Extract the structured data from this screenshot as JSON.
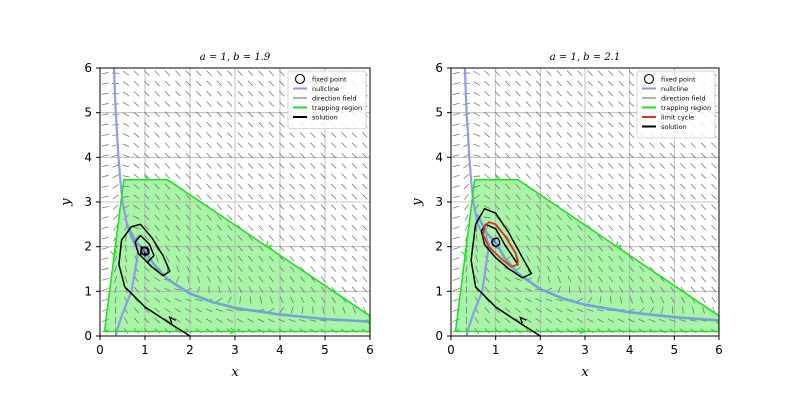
{
  "colors": {
    "trapping_fill": "#a8f5a8",
    "trapping_edge": "#22e022",
    "nullcline": "#8e96ec",
    "nullcline_overlap": "#6f9fd8",
    "direction_field": "#6a6a6a",
    "limit_cycle": "#e0301e",
    "solution": "#000000",
    "fixed_point": "#000000",
    "grid": "#b0b0b0",
    "inner_spiral": "#5b4bb8"
  },
  "chart_data": [
    {
      "type": "line",
      "title": "a = 1, b = 1.9",
      "params": {
        "a": 1,
        "b": 1.9
      },
      "xlabel": "x",
      "ylabel": "y",
      "xlim": [
        0,
        6
      ],
      "ylim": [
        0,
        6
      ],
      "xticks": [
        "0",
        "1",
        "2",
        "3",
        "4",
        "5",
        "6"
      ],
      "yticks": [
        "0",
        "1",
        "2",
        "3",
        "4",
        "5",
        "6"
      ],
      "grid": true,
      "legend_position": "top-right",
      "legend": [
        "fixed point",
        "nullcline",
        "direction field",
        "trapping region",
        "solution"
      ],
      "fixed_point": {
        "x": 1,
        "y": 1.9
      },
      "trapping_region": [
        [
          0.1,
          0.1
        ],
        [
          0.53,
          3.5
        ],
        [
          1.5,
          3.5
        ],
        [
          6,
          0.45
        ],
        [
          6,
          0.1
        ]
      ],
      "nullcline_steep": [
        [
          0.312,
          6
        ],
        [
          0.33,
          5.5
        ],
        [
          0.35,
          5
        ],
        [
          0.38,
          4.5
        ],
        [
          0.41,
          4
        ],
        [
          0.45,
          3.5
        ],
        [
          0.5,
          3
        ],
        [
          0.6,
          2.5
        ],
        [
          0.7,
          2.2
        ],
        [
          0.8,
          2.0
        ],
        [
          0.85,
          1.9
        ],
        [
          0.7,
          1.0
        ],
        [
          0.5,
          0.5
        ],
        [
          0.4,
          0.2
        ],
        [
          0.35,
          0
        ]
      ],
      "nullcline_hyperbola": [
        [
          0.6,
          2.5
        ],
        [
          0.8,
          2.1
        ],
        [
          1.0,
          1.9
        ],
        [
          1.2,
          1.6
        ],
        [
          1.5,
          1.27
        ],
        [
          2,
          0.95
        ],
        [
          2.5,
          0.76
        ],
        [
          3,
          0.63
        ],
        [
          4,
          0.48
        ],
        [
          5,
          0.38
        ],
        [
          6,
          0.32
        ]
      ],
      "solution_outer": [
        [
          2.0,
          0
        ],
        [
          1.6,
          0.25
        ],
        [
          1.0,
          0.65
        ],
        [
          0.55,
          1.1
        ],
        [
          0.42,
          1.6
        ],
        [
          0.48,
          2.15
        ],
        [
          0.7,
          2.45
        ],
        [
          0.9,
          2.5
        ],
        [
          1.15,
          2.2
        ],
        [
          1.4,
          1.8
        ],
        [
          1.55,
          1.45
        ],
        [
          1.4,
          1.35
        ],
        [
          1.15,
          1.55
        ],
        [
          0.85,
          1.85
        ],
        [
          0.78,
          2.1
        ],
        [
          0.9,
          2.25
        ],
        [
          1.1,
          2.05
        ],
        [
          1.2,
          1.8
        ],
        [
          1.05,
          1.65
        ],
        [
          0.9,
          1.8
        ],
        [
          0.92,
          2.0
        ],
        [
          1.05,
          1.95
        ],
        [
          1.08,
          1.85
        ],
        [
          1.0,
          1.82
        ],
        [
          0.98,
          1.9
        ]
      ],
      "solution_inner": [
        [
          1.0,
          2.0
        ],
        [
          0.92,
          1.9
        ],
        [
          1.0,
          1.78
        ],
        [
          1.1,
          1.85
        ],
        [
          1.05,
          2.0
        ],
        [
          0.95,
          1.95
        ],
        [
          1.0,
          1.88
        ]
      ],
      "limit_cycle": []
    },
    {
      "type": "line",
      "title": "a = 1, b = 2.1",
      "params": {
        "a": 1,
        "b": 2.1
      },
      "xlabel": "x",
      "ylabel": "y",
      "xlim": [
        0,
        6
      ],
      "ylim": [
        0,
        6
      ],
      "xticks": [
        "0",
        "1",
        "2",
        "3",
        "4",
        "5",
        "6"
      ],
      "yticks": [
        "0",
        "1",
        "2",
        "3",
        "4",
        "5",
        "6"
      ],
      "grid": true,
      "legend_position": "top-right",
      "legend": [
        "fixed point",
        "nullcline",
        "direction field",
        "trapping region",
        "limit cycle",
        "solution"
      ],
      "fixed_point": {
        "x": 1,
        "y": 2.1
      },
      "trapping_region": [
        [
          0.1,
          0.1
        ],
        [
          0.53,
          3.5
        ],
        [
          1.5,
          3.5
        ],
        [
          6,
          0.45
        ],
        [
          6,
          0.1
        ]
      ],
      "nullcline_steep": [
        [
          0.312,
          6
        ],
        [
          0.33,
          5.5
        ],
        [
          0.35,
          5
        ],
        [
          0.38,
          4.5
        ],
        [
          0.41,
          4
        ],
        [
          0.45,
          3.5
        ],
        [
          0.5,
          3
        ],
        [
          0.6,
          2.5
        ],
        [
          0.7,
          2.3
        ],
        [
          0.8,
          2.15
        ],
        [
          0.85,
          2.05
        ],
        [
          0.7,
          1.0
        ],
        [
          0.5,
          0.5
        ],
        [
          0.4,
          0.2
        ],
        [
          0.35,
          0
        ]
      ],
      "nullcline_hyperbola": [
        [
          0.6,
          2.7
        ],
        [
          0.8,
          2.3
        ],
        [
          1.0,
          2.1
        ],
        [
          1.2,
          1.75
        ],
        [
          1.5,
          1.4
        ],
        [
          2,
          1.05
        ],
        [
          2.5,
          0.84
        ],
        [
          3,
          0.7
        ],
        [
          4,
          0.53
        ],
        [
          5,
          0.42
        ],
        [
          6,
          0.35
        ]
      ],
      "solution_outer": [
        [
          2.0,
          0
        ],
        [
          1.6,
          0.25
        ],
        [
          1.0,
          0.65
        ],
        [
          0.55,
          1.1
        ],
        [
          0.45,
          1.7
        ],
        [
          0.55,
          2.5
        ],
        [
          0.75,
          2.85
        ],
        [
          1.0,
          2.75
        ],
        [
          1.3,
          2.3
        ],
        [
          1.6,
          1.75
        ],
        [
          1.8,
          1.4
        ],
        [
          1.6,
          1.3
        ],
        [
          1.3,
          1.5
        ],
        [
          1.0,
          1.75
        ],
        [
          0.75,
          2.05
        ],
        [
          0.68,
          2.35
        ],
        [
          0.78,
          2.5
        ],
        [
          1.0,
          2.4
        ],
        [
          1.2,
          2.05
        ],
        [
          1.4,
          1.75
        ],
        [
          1.5,
          1.6
        ]
      ],
      "solution_inner": [
        [
          1.0,
          2.2
        ],
        [
          0.92,
          2.1
        ],
        [
          1.0,
          1.98
        ],
        [
          1.1,
          2.05
        ],
        [
          1.05,
          2.2
        ],
        [
          0.95,
          2.15
        ],
        [
          1.0,
          2.08
        ]
      ],
      "limit_cycle": [
        [
          0.75,
          2.45
        ],
        [
          0.85,
          2.55
        ],
        [
          1.0,
          2.5
        ],
        [
          1.2,
          2.25
        ],
        [
          1.45,
          1.85
        ],
        [
          1.5,
          1.6
        ],
        [
          1.35,
          1.55
        ],
        [
          1.1,
          1.75
        ],
        [
          0.85,
          2.0
        ],
        [
          0.72,
          2.25
        ],
        [
          0.75,
          2.45
        ]
      ]
    }
  ]
}
